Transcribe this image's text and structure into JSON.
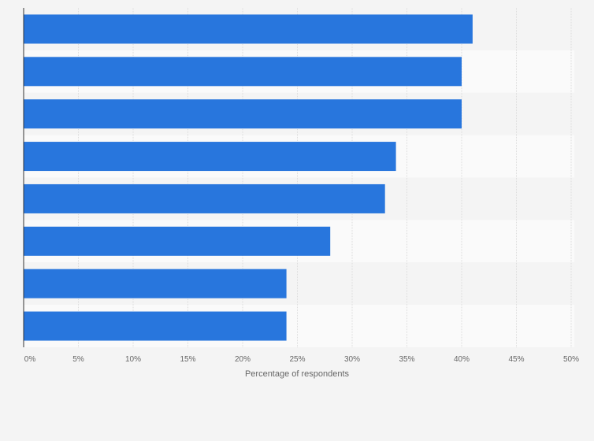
{
  "chart_data": {
    "type": "bar",
    "orientation": "horizontal",
    "title": "",
    "xlabel": "Percentage of respondents",
    "ylabel": "",
    "categories": [
      "",
      "",
      "",
      "",
      "",
      "",
      "",
      ""
    ],
    "values": [
      41,
      40,
      40,
      34,
      33,
      28,
      24,
      24
    ],
    "xlim": [
      0,
      50
    ],
    "x_ticks": [
      0,
      5,
      10,
      15,
      20,
      25,
      30,
      35,
      40,
      45,
      50
    ],
    "x_tick_labels": [
      "0%",
      "5%",
      "10%",
      "15%",
      "20%",
      "25%",
      "30%",
      "35%",
      "40%",
      "45%",
      "50%"
    ],
    "grid": true,
    "legend": "none",
    "bar_color": "#2876dd"
  }
}
